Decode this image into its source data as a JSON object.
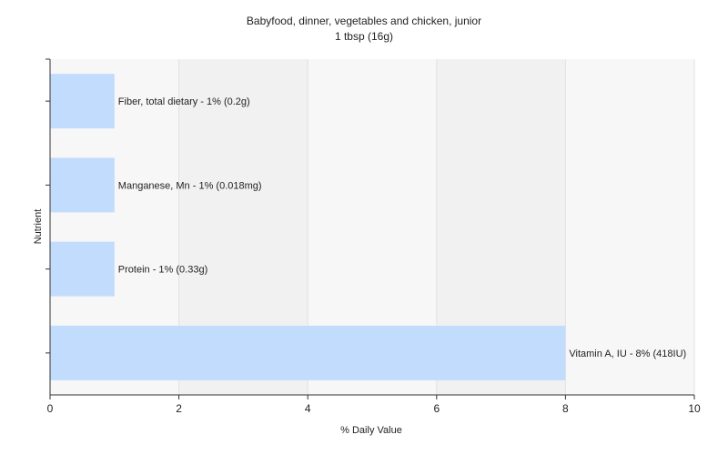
{
  "chart_data": {
    "type": "bar",
    "orientation": "horizontal",
    "title": "Babyfood, dinner, vegetables and chicken, junior",
    "subtitle": "1 tbsp (16g)",
    "xlabel": "% Daily Value",
    "ylabel": "Nutrient",
    "xlim": [
      0,
      10
    ],
    "xticks": [
      "0",
      "2",
      "4",
      "6",
      "8",
      "10"
    ],
    "grid": "vertical",
    "legend": "none",
    "bar_color": "#c2dcfd",
    "categories": [
      "Fiber, total dietary",
      "Manganese, Mn",
      "Protein",
      "Vitamin A, IU"
    ],
    "values": [
      1,
      1,
      1,
      8
    ],
    "labels": [
      "Fiber, total dietary - 1% (0.2g)",
      "Manganese, Mn - 1% (0.018mg)",
      "Protein - 1% (0.33g)",
      "Vitamin A, IU - 8% (418IU)"
    ]
  }
}
